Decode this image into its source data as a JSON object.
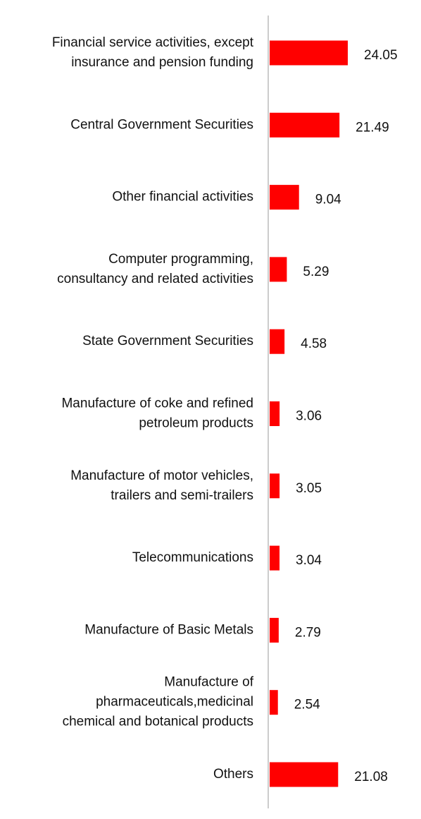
{
  "chart_data": {
    "type": "bar",
    "orientation": "horizontal",
    "categories": [
      [
        "Financial service activities, except",
        "insurance and pension funding"
      ],
      [
        "Central Government Securities"
      ],
      [
        "Other financial activities"
      ],
      [
        "Computer programming,",
        "consultancy and related activities"
      ],
      [
        "State Government Securities"
      ],
      [
        "Manufacture of coke and refined",
        "petroleum products"
      ],
      [
        "Manufacture of motor vehicles,",
        "trailers and semi-trailers"
      ],
      [
        "Telecommunications"
      ],
      [
        "Manufacture of Basic Metals"
      ],
      [
        "Manufacture of",
        "pharmaceuticals,medicinal",
        "chemical and botanical products"
      ],
      [
        "Others"
      ]
    ],
    "values": [
      24.05,
      21.49,
      9.04,
      5.29,
      4.58,
      3.06,
      3.05,
      3.04,
      2.79,
      2.54,
      21.08
    ],
    "value_labels": [
      "24.05",
      "21.49",
      "9.04",
      "5.29",
      "4.58",
      "3.06",
      "3.05",
      "3.04",
      "2.79",
      "2.54",
      "21.08"
    ],
    "xlim": [
      0,
      24.05
    ],
    "bar_color": "#ff0000",
    "axis_color": "#cccccc",
    "text_color": "#111111",
    "grid": false,
    "legend": "none"
  }
}
